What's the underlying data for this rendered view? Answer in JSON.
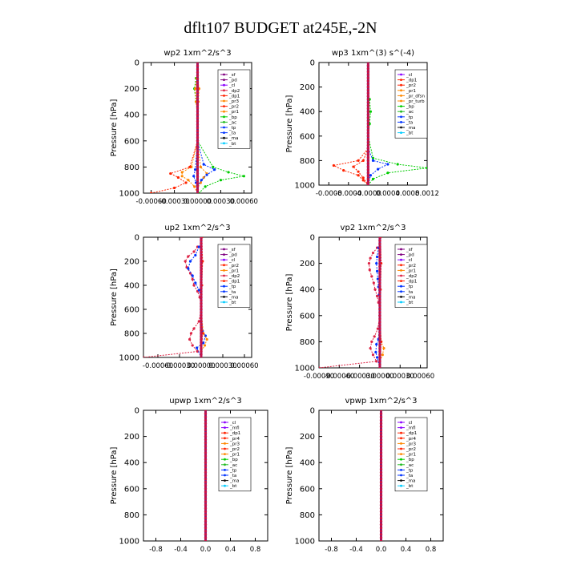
{
  "title": "dflt107  BUDGET at245E,-2N",
  "colors": {
    "sf": "#800080",
    "pd": "#800080",
    "cl": "#8b00ff",
    "mfl": "#8b00ff",
    "dp2": "#dd2244",
    "dp1": "#ff2200",
    "pr4": "#ff2200",
    "pr3": "#ff8800",
    "pr2": "#ff2200",
    "pr1": "#ff8800",
    "pr_dfsn": "#ff8800",
    "pr_turb": "#ff8800",
    "bp": "#00cc00",
    "ac": "#22bb22",
    "tp": "#0033ff",
    "ta": "#0033ff",
    "ma": "#111111",
    "bt": "#00ccff",
    "line": "#7a1f7a"
  },
  "chart_data": [
    {
      "type": "line",
      "title": "wp2   1xm^2/s^3",
      "ylabel": "Pressure  [hPa]",
      "ylim": [
        1000,
        0
      ],
      "yticks": [
        0,
        200,
        400,
        600,
        800,
        1000
      ],
      "xlim": [
        -0.0007,
        0.0007
      ],
      "xticks": [
        -0.0006,
        -0.0003,
        0.0,
        0.0003,
        0.0006
      ],
      "xticklabels": [
        "-0.00060",
        "-0.00030",
        "0.00000",
        "0.00030",
        "0.00060"
      ],
      "legend": [
        "_sf",
        "_pd",
        "_cl",
        "_dp2",
        "_dp1",
        "_pr3",
        "_pr2",
        "_pr1",
        "_bp",
        "_ac",
        "_tp",
        "_ta",
        "_ma",
        "_bt"
      ],
      "series": [
        {
          "key": "bp",
          "p": [
            120,
            200,
            300,
            400,
            600,
            800,
            840,
            870,
            900,
            950,
            1000
          ],
          "v": [
            -2e-05,
            -4e-05,
            -2e-05,
            0.0,
            0.0,
            0.0002,
            0.0004,
            0.0006,
            0.0003,
            0.0001,
            2e-05
          ]
        },
        {
          "key": "pr3",
          "p": [
            120,
            200,
            300,
            400,
            600,
            800,
            840,
            870,
            900,
            950,
            1000
          ],
          "v": [
            -1e-05,
            -3e-05,
            -2e-05,
            0.0,
            0.0,
            -8e-05,
            -0.0002,
            -0.0002,
            -0.00012,
            -4e-05,
            0.0
          ]
        },
        {
          "key": "pr1",
          "p": [
            120,
            200,
            300,
            400,
            600,
            800,
            850,
            880,
            920,
            960,
            1000
          ],
          "v": [
            0.0,
            2e-05,
            1e-05,
            0.0,
            0.0,
            4e-05,
            0.00012,
            8e-05,
            4e-05,
            0.0,
            0.0
          ]
        },
        {
          "key": "dp1",
          "p": [
            600,
            800,
            850,
            880,
            920,
            960,
            1000
          ],
          "v": [
            0.0,
            -0.0001,
            -0.00035,
            -0.00025,
            -0.00015,
            -0.0003,
            -0.0006
          ]
        },
        {
          "key": "tp",
          "p": [
            600,
            780,
            820,
            860,
            900,
            950,
            1000
          ],
          "v": [
            0.0,
            8e-05,
            0.00022,
            0.00012,
            5e-05,
            0.0,
            0.0
          ]
        },
        {
          "key": "ta",
          "p": [
            600,
            820,
            870,
            920,
            1000
          ],
          "v": [
            0.0,
            -3e-05,
            -5e-05,
            -2e-05,
            0.0
          ]
        }
      ]
    },
    {
      "type": "line",
      "title": "wp3   1xm^(3) s^(-4)",
      "ylabel": "Pressure  [hPa]",
      "ylim": [
        1000,
        0
      ],
      "yticks": [
        0,
        200,
        400,
        600,
        800,
        1000
      ],
      "xlim": [
        -0.001,
        0.0012
      ],
      "xticks": [
        -0.0008,
        -0.0004,
        0.0,
        0.0004,
        0.0008,
        0.0012
      ],
      "xticklabels": [
        "-0.0008",
        "-0.0004",
        "-0.0000",
        "0.0004",
        "0.0008",
        "0.0012"
      ],
      "legend": [
        "_cl",
        "_dp1",
        "_pr2",
        "_pr1",
        "_pr_dfsn",
        "_pr_turb",
        "_bp",
        "_ac",
        "_tp",
        "_ta",
        "_ma",
        "_bt"
      ],
      "series": [
        {
          "key": "bp",
          "p": [
            300,
            400,
            500,
            600,
            780,
            830,
            860,
            900,
            950,
            1000
          ],
          "v": [
            3e-05,
            5e-05,
            3e-05,
            0.0,
            0.0001,
            0.0006,
            0.0012,
            0.0004,
            0.0001,
            0.0
          ]
        },
        {
          "key": "dp1",
          "p": [
            700,
            800,
            840,
            880,
            920,
            960,
            1000
          ],
          "v": [
            0.0,
            -0.0002,
            -0.0007,
            -0.0005,
            -0.0002,
            -0.0001,
            0.0
          ]
        },
        {
          "key": "pr2",
          "p": [
            700,
            800,
            850,
            890,
            940,
            1000
          ],
          "v": [
            0.0,
            -0.0001,
            -0.0003,
            -0.0002,
            -0.0001,
            0.0
          ]
        },
        {
          "key": "tp",
          "p": [
            700,
            800,
            830,
            870,
            920,
            1000
          ],
          "v": [
            0.0,
            0.0001,
            0.0004,
            0.0002,
            5e-05,
            0.0
          ]
        }
      ]
    },
    {
      "type": "line",
      "title": "up2   1xm^2/s^3",
      "ylabel": "Pressure  [hPa]",
      "ylim": [
        1000,
        0
      ],
      "yticks": [
        0,
        200,
        400,
        600,
        800,
        1000
      ],
      "xlim": [
        -0.0008,
        0.0007
      ],
      "xticks": [
        -0.0006,
        -0.0003,
        0.0,
        0.0003,
        0.0006
      ],
      "xticklabels": [
        "-0.00060",
        "-0.00030",
        "0.00000",
        "0.00030",
        "0.00060"
      ],
      "legend": [
        "_sf",
        "_pd",
        "_cl",
        "_pr2",
        "_pr1",
        "_dp2",
        "_dp1",
        "_tp",
        "_ta",
        "_ma",
        "_bt"
      ],
      "series": [
        {
          "key": "dp2",
          "p": [
            80,
            120,
            160,
            200,
            250,
            300,
            350,
            400,
            450,
            500,
            550,
            600,
            700,
            760,
            800,
            850,
            900,
            950,
            1000
          ],
          "v": [
            -5e-05,
            -0.0001,
            -0.00018,
            -0.00022,
            -0.0002,
            -0.00015,
            -0.00012,
            -0.0001,
            -5e-05,
            -2e-05,
            0.0,
            0.0,
            -3e-05,
            -0.0001,
            -0.00014,
            -0.00016,
            -0.00012,
            -5e-05,
            -0.0008
          ]
        },
        {
          "key": "tp",
          "p": [
            80,
            150,
            200,
            260,
            320,
            380,
            440,
            500,
            600,
            780,
            820,
            880,
            920,
            1000
          ],
          "v": [
            -3e-05,
            -8e-05,
            -0.00015,
            -0.00018,
            -0.00012,
            -8e-05,
            -3e-05,
            0.0,
            0.0,
            2e-05,
            6e-05,
            3e-05,
            -6e-05,
            0.0
          ]
        },
        {
          "key": "pr1",
          "p": [
            600,
            800,
            850,
            900,
            950,
            1000
          ],
          "v": [
            0.0,
            3e-05,
            8e-05,
            5e-05,
            0.0,
            0.0
          ]
        },
        {
          "key": "pr2",
          "p": [
            0,
            200,
            400,
            600,
            800,
            1000
          ],
          "v": [
            1e-05,
            2e-05,
            1e-05,
            0.0,
            2e-05,
            0.0
          ]
        }
      ]
    },
    {
      "type": "line",
      "title": "vp2   1xm^2/s^3",
      "ylabel": "Pressure  [hPa]",
      "ylim": [
        1000,
        0
      ],
      "yticks": [
        0,
        200,
        400,
        600,
        800,
        1000
      ],
      "xlim": [
        -0.0009,
        0.0007
      ],
      "xticks": [
        -0.0009,
        -0.0006,
        -0.0003,
        0.0,
        0.0003,
        0.0006
      ],
      "xticklabels": [
        "-0.00090",
        "-0.00060",
        "-0.00030",
        "0.00000",
        "0.00030",
        "0.00060"
      ],
      "legend": [
        "_sf",
        "_pd",
        "_cl",
        "_pr2",
        "_pr1",
        "_dp2",
        "_dp1",
        "_tp",
        "_ta",
        "_ma",
        "_bt"
      ],
      "series": [
        {
          "key": "dp2",
          "p": [
            80,
            120,
            160,
            200,
            250,
            300,
            350,
            400,
            450,
            500,
            550,
            600,
            700,
            760,
            800,
            850,
            900,
            950,
            1000
          ],
          "v": [
            -4e-05,
            -0.0001,
            -0.00014,
            -0.00016,
            -0.00015,
            -0.00012,
            -9e-05,
            -7e-05,
            -4e-05,
            -2e-05,
            0.0,
            0.0,
            -3e-05,
            -8e-05,
            -0.00012,
            -0.00014,
            -0.0001,
            -5e-05,
            -0.0009
          ]
        },
        {
          "key": "tp",
          "p": [
            80,
            150,
            200,
            260,
            320,
            380,
            440,
            500,
            600,
            780,
            820,
            880,
            920,
            1000
          ],
          "v": [
            -2e-05,
            -4e-05,
            -5e-05,
            -4e-05,
            -3e-05,
            -2e-05,
            -1e-05,
            0.0,
            0.0,
            -2e-05,
            -5e-05,
            -6e-05,
            -4e-05,
            0.0
          ]
        },
        {
          "key": "pr1",
          "p": [
            600,
            800,
            850,
            900,
            950,
            1000
          ],
          "v": [
            0.0,
            2e-05,
            6e-05,
            4e-05,
            0.0,
            0.0
          ]
        },
        {
          "key": "pr2",
          "p": [
            0,
            200,
            400,
            600,
            800,
            1000
          ],
          "v": [
            1e-05,
            2e-05,
            1e-05,
            0.0,
            2e-05,
            0.0
          ]
        }
      ]
    },
    {
      "type": "line",
      "title": "upwp   1xm^2/s^3",
      "ylabel": "Pressure  [hPa]",
      "ylim": [
        1000,
        0
      ],
      "yticks": [
        0,
        200,
        400,
        600,
        800,
        1000
      ],
      "xlim": [
        -1.0,
        1.0
      ],
      "xticks": [
        -0.8,
        -0.4,
        0.0,
        0.4,
        0.8
      ],
      "xticklabels": [
        "-0.8",
        "-0.4",
        "0.0",
        "0.4",
        "0.8"
      ],
      "legend": [
        "_cl",
        "_mfl",
        "_dp1",
        "_pr4",
        "_pr3",
        "_pr2",
        "_pr1",
        "_bp",
        "_ac",
        "_tp",
        "_ta",
        "_ma",
        "_bt"
      ],
      "series": []
    },
    {
      "type": "line",
      "title": "vpwp   1xm^2/s^3",
      "ylabel": "Pressure  [hPa]",
      "ylim": [
        1000,
        0
      ],
      "yticks": [
        0,
        200,
        400,
        600,
        800,
        1000
      ],
      "xlim": [
        -1.0,
        1.0
      ],
      "xticks": [
        -0.8,
        -0.4,
        0.0,
        0.4,
        0.8
      ],
      "xticklabels": [
        "-0.8",
        "-0.4",
        "0.0",
        "0.4",
        "0.8"
      ],
      "legend": [
        "_cl",
        "_mfl",
        "_dp1",
        "_pr4",
        "_pr3",
        "_pr2",
        "_pr1",
        "_bp",
        "_ac",
        "_tp",
        "_ta",
        "_ma",
        "_bt"
      ],
      "series": []
    }
  ]
}
